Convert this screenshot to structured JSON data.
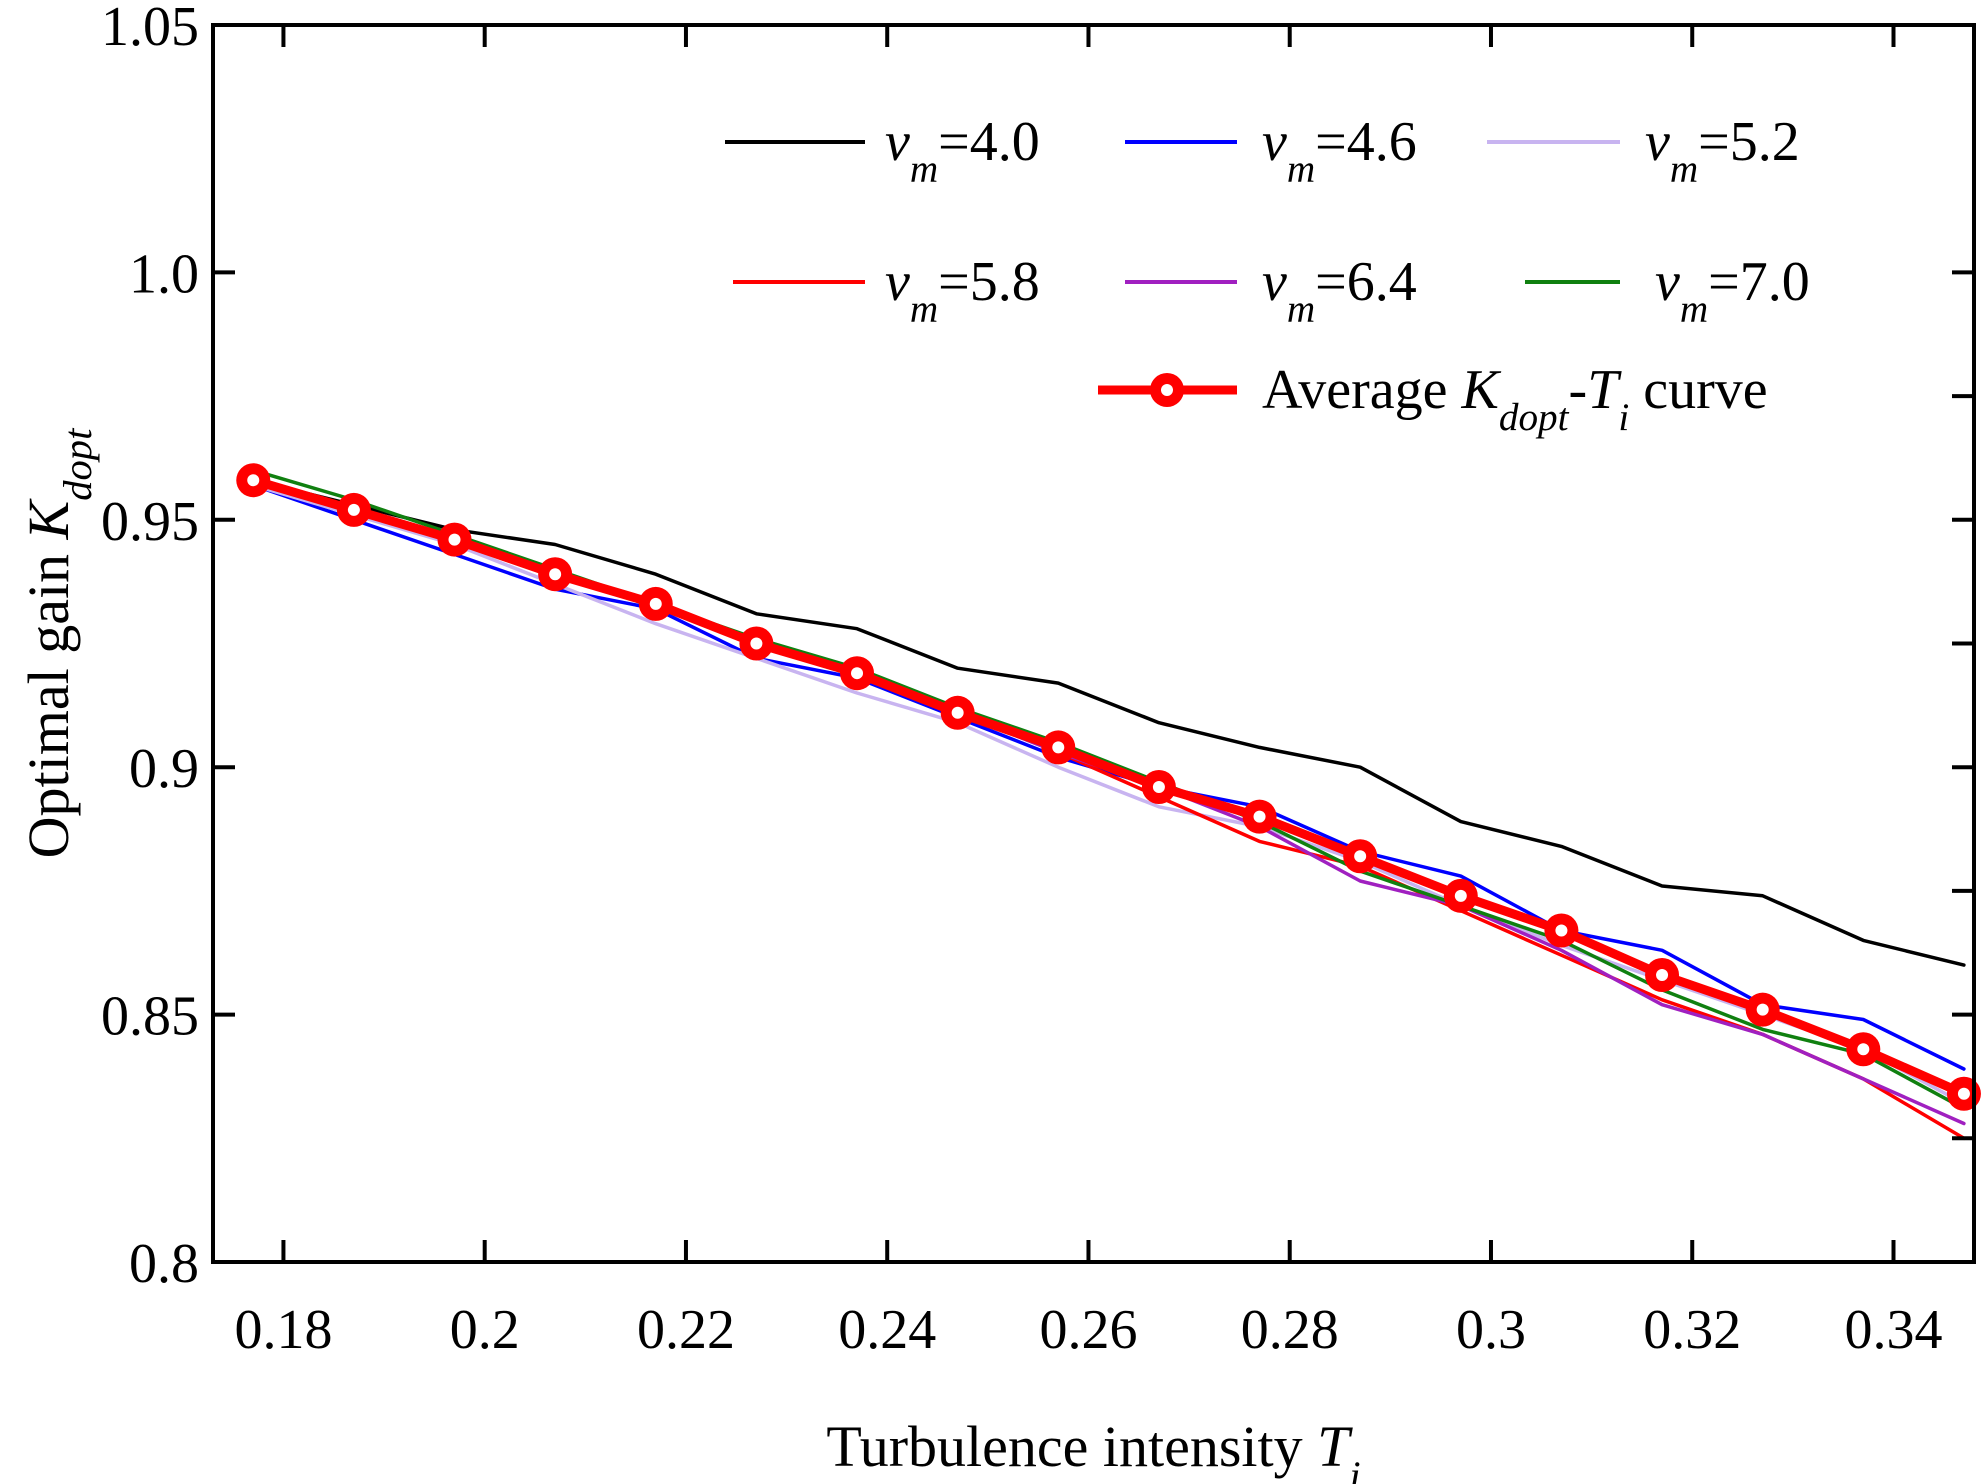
{
  "chart_data": {
    "type": "line",
    "title": "",
    "xlabel": {
      "prefix": "Turbulence intensity ",
      "symbol": "T",
      "sub": "i"
    },
    "ylabel": {
      "prefix": "Optimal gain ",
      "symbol": "K",
      "sub": "dopt"
    },
    "xlim": [
      0.173,
      0.348
    ],
    "ylim": [
      0.8,
      1.05
    ],
    "xticks": [
      {
        "value": 0.18,
        "label": "0.18"
      },
      {
        "value": 0.2,
        "label": "0.2"
      },
      {
        "value": 0.22,
        "label": "0.22"
      },
      {
        "value": 0.24,
        "label": "0.24"
      },
      {
        "value": 0.26,
        "label": "0.26"
      },
      {
        "value": 0.28,
        "label": "0.28"
      },
      {
        "value": 0.3,
        "label": "0.3"
      },
      {
        "value": 0.32,
        "label": "0.32"
      },
      {
        "value": 0.34,
        "label": "0.34"
      }
    ],
    "yticks": [
      {
        "value": 0.8,
        "label": "0.8"
      },
      {
        "value": 0.85,
        "label": "0.85"
      },
      {
        "value": 0.9,
        "label": "0.9"
      },
      {
        "value": 0.95,
        "label": "0.95"
      },
      {
        "value": 1.0,
        "label": "1.0"
      },
      {
        "value": 1.05,
        "label": "1.05"
      }
    ],
    "grid": false,
    "x": [
      0.177,
      0.187,
      0.197,
      0.207,
      0.217,
      0.227,
      0.237,
      0.247,
      0.257,
      0.267,
      0.277,
      0.287,
      0.297,
      0.307,
      0.317,
      0.327,
      0.337,
      0.347
    ],
    "series": [
      {
        "name": "v_m=4.0",
        "label_sym": "v",
        "label_sub": "m",
        "label_val": "=4.0",
        "color": "#000000",
        "width": 3.5,
        "values": [
          0.958,
          0.953,
          0.948,
          0.945,
          0.939,
          0.931,
          0.928,
          0.92,
          0.917,
          0.909,
          0.904,
          0.9,
          0.889,
          0.884,
          0.876,
          0.874,
          0.865,
          0.86
        ]
      },
      {
        "name": "v_m=4.6",
        "label_sym": "v",
        "label_sub": "m",
        "label_val": "=4.6",
        "color": "#0000ff",
        "width": 3.5,
        "values": [
          0.957,
          0.95,
          0.943,
          0.936,
          0.932,
          0.922,
          0.918,
          0.91,
          0.902,
          0.896,
          0.892,
          0.883,
          0.878,
          0.867,
          0.863,
          0.852,
          0.849,
          0.839
        ]
      },
      {
        "name": "v_m=5.2",
        "label_sym": "v",
        "label_sub": "m",
        "label_val": "=5.2",
        "color": "#c8b4f0",
        "width": 3.5,
        "values": [
          0.957,
          0.951,
          0.945,
          0.937,
          0.929,
          0.922,
          0.915,
          0.909,
          0.9,
          0.892,
          0.888,
          0.881,
          0.872,
          0.864,
          0.857,
          0.85,
          0.843,
          0.832
        ]
      },
      {
        "name": "v_m=5.8",
        "label_sym": "v",
        "label_sub": "m",
        "label_val": "=5.8",
        "color": "#ff0000",
        "width": 3.5,
        "values": [
          0.958,
          0.952,
          0.946,
          0.939,
          0.933,
          0.925,
          0.919,
          0.911,
          0.903,
          0.894,
          0.885,
          0.88,
          0.871,
          0.862,
          0.853,
          0.846,
          0.837,
          0.825
        ]
      },
      {
        "name": "v_m=6.4",
        "label_sym": "v",
        "label_sub": "m",
        "label_val": "=6.4",
        "color": "#a020c0",
        "width": 3.5,
        "values": [
          0.958,
          0.952,
          0.946,
          0.939,
          0.933,
          0.925,
          0.919,
          0.911,
          0.903,
          0.896,
          0.888,
          0.877,
          0.872,
          0.863,
          0.852,
          0.846,
          0.837,
          0.828
        ]
      },
      {
        "name": "v_m=7.0",
        "label_sym": "v",
        "label_sub": "m",
        "label_val": "=7.0",
        "color": "#108010",
        "width": 3.5,
        "values": [
          0.96,
          0.954,
          0.947,
          0.94,
          0.933,
          0.926,
          0.92,
          0.912,
          0.905,
          0.897,
          0.889,
          0.879,
          0.872,
          0.865,
          0.855,
          0.847,
          0.842,
          0.831
        ]
      },
      {
        "name": "Average K_dopt-T_i curve",
        "color": "#ff0000",
        "width": 9,
        "markers": true,
        "label_parts": [
          {
            "text": "Average ",
            "italic": false
          },
          {
            "text": "K",
            "italic": true
          },
          {
            "text": "dopt",
            "italic": true,
            "sub": true
          },
          {
            "text": "-",
            "italic": false
          },
          {
            "text": "T",
            "italic": true
          },
          {
            "text": "i",
            "italic": true,
            "sub": true
          },
          {
            "text": " curve",
            "italic": false
          }
        ],
        "values": [
          0.958,
          0.952,
          0.946,
          0.939,
          0.933,
          0.925,
          0.919,
          0.911,
          0.904,
          0.896,
          0.89,
          0.882,
          0.874,
          0.867,
          0.858,
          0.851,
          0.843,
          0.834
        ]
      }
    ],
    "legend": "top-right"
  }
}
